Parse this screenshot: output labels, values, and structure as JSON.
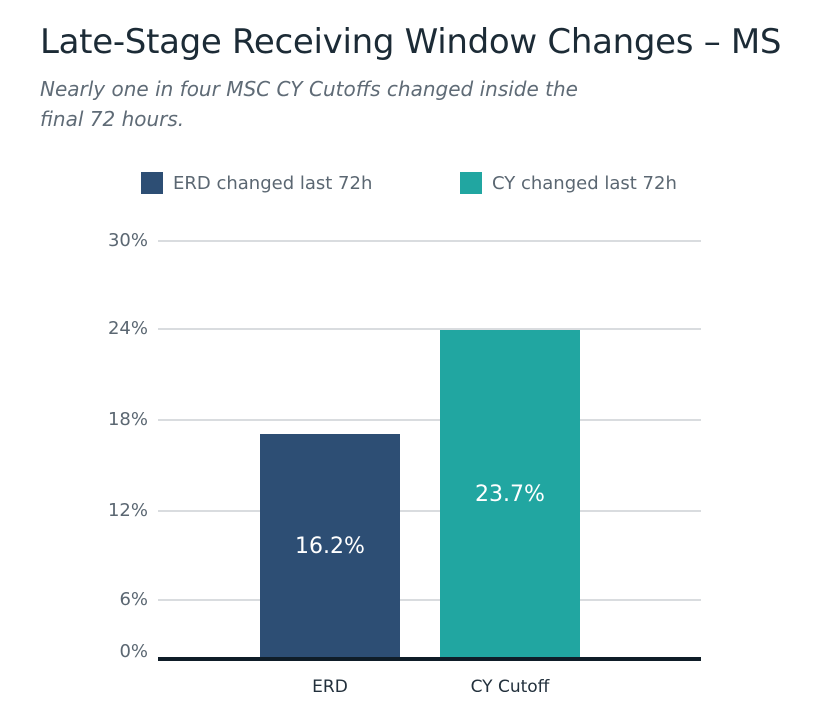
{
  "header": {
    "title": "Late-Stage Receiving Window Changes – MS",
    "subtitle": "Nearly one in four MSC CY Cutoffs changed inside the final 72 hours."
  },
  "chart_data": {
    "type": "bar",
    "categories": [
      "ERD",
      "CY Cutoff"
    ],
    "values": [
      16.2,
      23.7
    ],
    "value_labels": [
      "16.2%",
      "23.7%"
    ],
    "series_colors": [
      "#2d4e74",
      "#21a6a1"
    ],
    "legend": [
      {
        "label": "ERD changed last 72h",
        "color": "#2d4e74"
      },
      {
        "label": "CY changed last 72h",
        "color": "#21a6a1"
      }
    ],
    "legend_position": "top",
    "grid": true,
    "ylim": [
      0,
      30
    ],
    "ytick_labels": [
      "30%",
      "24%",
      "18%",
      "12%",
      "6%",
      "0%"
    ],
    "ytick_values": [
      30,
      24,
      18,
      12,
      6,
      0
    ]
  },
  "colors": {
    "background": "#ffffff",
    "title_text": "#1c2b36",
    "muted_text": "#5b6772",
    "gridline": "#d9dcdf",
    "axis_line": "#0f1d28",
    "bar_value_text": "#ffffff",
    "category_text": "#22303c"
  }
}
